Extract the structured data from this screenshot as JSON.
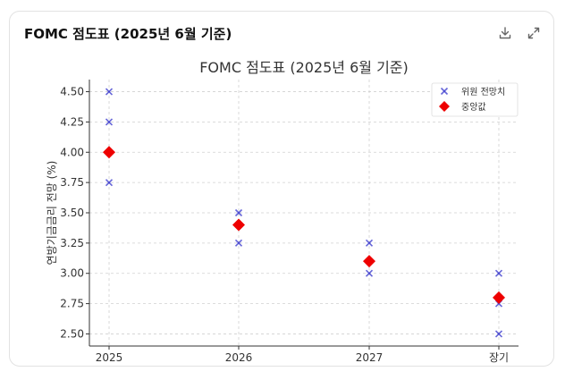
{
  "card": {
    "title": "FOMC 점도표 (2025년 6월 기준)",
    "download_icon": "download-icon",
    "expand_icon": "expand-icon"
  },
  "chart_data": {
    "type": "scatter",
    "title": "FOMC 점도표 (2025년 6월 기준)",
    "xlabel": "",
    "ylabel": "연방기금금리 전망 (%)",
    "categories": [
      "2025",
      "2026",
      "2027",
      "장기"
    ],
    "ylim": [
      2.4,
      4.6
    ],
    "yticks": [
      "2.50",
      "2.75",
      "3.00",
      "3.25",
      "3.50",
      "3.75",
      "4.00",
      "4.25",
      "4.50"
    ],
    "grid": true,
    "legend_position": "top-right",
    "series": [
      {
        "name": "위원 전망치",
        "marker": "x",
        "color": "#3333cc",
        "points": [
          {
            "x": "2025",
            "y": 4.5
          },
          {
            "x": "2025",
            "y": 4.25
          },
          {
            "x": "2025",
            "y": 3.75
          },
          {
            "x": "2026",
            "y": 3.5
          },
          {
            "x": "2026",
            "y": 3.25
          },
          {
            "x": "2027",
            "y": 3.25
          },
          {
            "x": "2027",
            "y": 3.0
          },
          {
            "x": "장기",
            "y": 3.0
          },
          {
            "x": "장기",
            "y": 2.75
          },
          {
            "x": "장기",
            "y": 2.5
          }
        ]
      },
      {
        "name": "중앙값",
        "marker": "diamond",
        "color": "#ee0000",
        "points": [
          {
            "x": "2025",
            "y": 4.0
          },
          {
            "x": "2026",
            "y": 3.4
          },
          {
            "x": "2027",
            "y": 3.1
          },
          {
            "x": "장기",
            "y": 2.8
          }
        ]
      }
    ]
  }
}
